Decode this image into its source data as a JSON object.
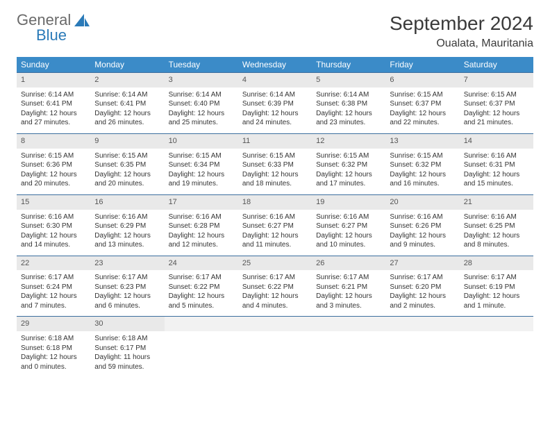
{
  "brand": {
    "text_general": "General",
    "text_blue": "Blue",
    "sail_color": "#2a7ab8",
    "text_gray_color": "#6a6a6a"
  },
  "title": {
    "month": "September 2024",
    "location": "Oualata, Mauritania"
  },
  "colors": {
    "header_bg": "#3b8bc8",
    "header_text": "#ffffff",
    "daynum_bg": "#e9e9e9",
    "row_border": "#3b6e9e",
    "body_text": "#333333"
  },
  "weekdays": [
    "Sunday",
    "Monday",
    "Tuesday",
    "Wednesday",
    "Thursday",
    "Friday",
    "Saturday"
  ],
  "weeks": [
    [
      {
        "n": "1",
        "sr": "Sunrise: 6:14 AM",
        "ss": "Sunset: 6:41 PM",
        "d1": "Daylight: 12 hours",
        "d2": "and 27 minutes."
      },
      {
        "n": "2",
        "sr": "Sunrise: 6:14 AM",
        "ss": "Sunset: 6:41 PM",
        "d1": "Daylight: 12 hours",
        "d2": "and 26 minutes."
      },
      {
        "n": "3",
        "sr": "Sunrise: 6:14 AM",
        "ss": "Sunset: 6:40 PM",
        "d1": "Daylight: 12 hours",
        "d2": "and 25 minutes."
      },
      {
        "n": "4",
        "sr": "Sunrise: 6:14 AM",
        "ss": "Sunset: 6:39 PM",
        "d1": "Daylight: 12 hours",
        "d2": "and 24 minutes."
      },
      {
        "n": "5",
        "sr": "Sunrise: 6:14 AM",
        "ss": "Sunset: 6:38 PM",
        "d1": "Daylight: 12 hours",
        "d2": "and 23 minutes."
      },
      {
        "n": "6",
        "sr": "Sunrise: 6:15 AM",
        "ss": "Sunset: 6:37 PM",
        "d1": "Daylight: 12 hours",
        "d2": "and 22 minutes."
      },
      {
        "n": "7",
        "sr": "Sunrise: 6:15 AM",
        "ss": "Sunset: 6:37 PM",
        "d1": "Daylight: 12 hours",
        "d2": "and 21 minutes."
      }
    ],
    [
      {
        "n": "8",
        "sr": "Sunrise: 6:15 AM",
        "ss": "Sunset: 6:36 PM",
        "d1": "Daylight: 12 hours",
        "d2": "and 20 minutes."
      },
      {
        "n": "9",
        "sr": "Sunrise: 6:15 AM",
        "ss": "Sunset: 6:35 PM",
        "d1": "Daylight: 12 hours",
        "d2": "and 20 minutes."
      },
      {
        "n": "10",
        "sr": "Sunrise: 6:15 AM",
        "ss": "Sunset: 6:34 PM",
        "d1": "Daylight: 12 hours",
        "d2": "and 19 minutes."
      },
      {
        "n": "11",
        "sr": "Sunrise: 6:15 AM",
        "ss": "Sunset: 6:33 PM",
        "d1": "Daylight: 12 hours",
        "d2": "and 18 minutes."
      },
      {
        "n": "12",
        "sr": "Sunrise: 6:15 AM",
        "ss": "Sunset: 6:32 PM",
        "d1": "Daylight: 12 hours",
        "d2": "and 17 minutes."
      },
      {
        "n": "13",
        "sr": "Sunrise: 6:15 AM",
        "ss": "Sunset: 6:32 PM",
        "d1": "Daylight: 12 hours",
        "d2": "and 16 minutes."
      },
      {
        "n": "14",
        "sr": "Sunrise: 6:16 AM",
        "ss": "Sunset: 6:31 PM",
        "d1": "Daylight: 12 hours",
        "d2": "and 15 minutes."
      }
    ],
    [
      {
        "n": "15",
        "sr": "Sunrise: 6:16 AM",
        "ss": "Sunset: 6:30 PM",
        "d1": "Daylight: 12 hours",
        "d2": "and 14 minutes."
      },
      {
        "n": "16",
        "sr": "Sunrise: 6:16 AM",
        "ss": "Sunset: 6:29 PM",
        "d1": "Daylight: 12 hours",
        "d2": "and 13 minutes."
      },
      {
        "n": "17",
        "sr": "Sunrise: 6:16 AM",
        "ss": "Sunset: 6:28 PM",
        "d1": "Daylight: 12 hours",
        "d2": "and 12 minutes."
      },
      {
        "n": "18",
        "sr": "Sunrise: 6:16 AM",
        "ss": "Sunset: 6:27 PM",
        "d1": "Daylight: 12 hours",
        "d2": "and 11 minutes."
      },
      {
        "n": "19",
        "sr": "Sunrise: 6:16 AM",
        "ss": "Sunset: 6:27 PM",
        "d1": "Daylight: 12 hours",
        "d2": "and 10 minutes."
      },
      {
        "n": "20",
        "sr": "Sunrise: 6:16 AM",
        "ss": "Sunset: 6:26 PM",
        "d1": "Daylight: 12 hours",
        "d2": "and 9 minutes."
      },
      {
        "n": "21",
        "sr": "Sunrise: 6:16 AM",
        "ss": "Sunset: 6:25 PM",
        "d1": "Daylight: 12 hours",
        "d2": "and 8 minutes."
      }
    ],
    [
      {
        "n": "22",
        "sr": "Sunrise: 6:17 AM",
        "ss": "Sunset: 6:24 PM",
        "d1": "Daylight: 12 hours",
        "d2": "and 7 minutes."
      },
      {
        "n": "23",
        "sr": "Sunrise: 6:17 AM",
        "ss": "Sunset: 6:23 PM",
        "d1": "Daylight: 12 hours",
        "d2": "and 6 minutes."
      },
      {
        "n": "24",
        "sr": "Sunrise: 6:17 AM",
        "ss": "Sunset: 6:22 PM",
        "d1": "Daylight: 12 hours",
        "d2": "and 5 minutes."
      },
      {
        "n": "25",
        "sr": "Sunrise: 6:17 AM",
        "ss": "Sunset: 6:22 PM",
        "d1": "Daylight: 12 hours",
        "d2": "and 4 minutes."
      },
      {
        "n": "26",
        "sr": "Sunrise: 6:17 AM",
        "ss": "Sunset: 6:21 PM",
        "d1": "Daylight: 12 hours",
        "d2": "and 3 minutes."
      },
      {
        "n": "27",
        "sr": "Sunrise: 6:17 AM",
        "ss": "Sunset: 6:20 PM",
        "d1": "Daylight: 12 hours",
        "d2": "and 2 minutes."
      },
      {
        "n": "28",
        "sr": "Sunrise: 6:17 AM",
        "ss": "Sunset: 6:19 PM",
        "d1": "Daylight: 12 hours",
        "d2": "and 1 minute."
      }
    ],
    [
      {
        "n": "29",
        "sr": "Sunrise: 6:18 AM",
        "ss": "Sunset: 6:18 PM",
        "d1": "Daylight: 12 hours",
        "d2": "and 0 minutes."
      },
      {
        "n": "30",
        "sr": "Sunrise: 6:18 AM",
        "ss": "Sunset: 6:17 PM",
        "d1": "Daylight: 11 hours",
        "d2": "and 59 minutes."
      },
      {
        "n": "",
        "sr": "",
        "ss": "",
        "d1": "",
        "d2": ""
      },
      {
        "n": "",
        "sr": "",
        "ss": "",
        "d1": "",
        "d2": ""
      },
      {
        "n": "",
        "sr": "",
        "ss": "",
        "d1": "",
        "d2": ""
      },
      {
        "n": "",
        "sr": "",
        "ss": "",
        "d1": "",
        "d2": ""
      },
      {
        "n": "",
        "sr": "",
        "ss": "",
        "d1": "",
        "d2": ""
      }
    ]
  ]
}
